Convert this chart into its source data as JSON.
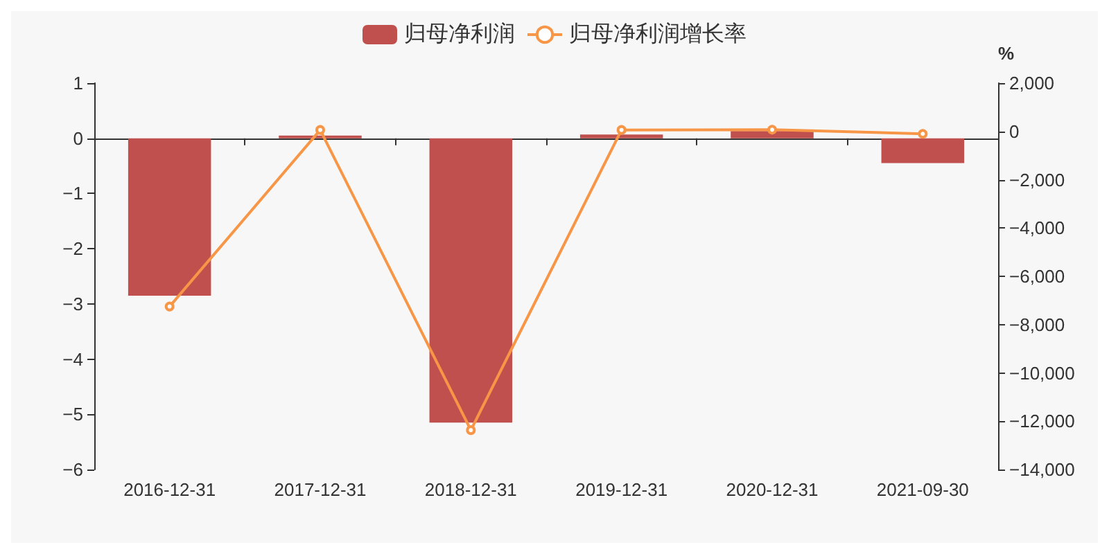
{
  "chart_data": {
    "type": "bar",
    "categories": [
      "2016-12-31",
      "2017-12-31",
      "2018-12-31",
      "2019-12-31",
      "2020-12-31",
      "2021-09-30"
    ],
    "series": [
      {
        "name": "归母净利润",
        "color": "#c0504d",
        "values": [
          -2.85,
          0.05,
          -5.15,
          0.07,
          0.13,
          -0.45
        ]
      },
      {
        "name": "归母净利润增长率",
        "type": "line",
        "axis": "y2",
        "color": "#f79646",
        "values": [
          -7250,
          60,
          -12370,
          60,
          70,
          -100
        ]
      }
    ],
    "y2label": "%",
    "ylim": [
      -6,
      1
    ],
    "yticks": [
      {
        "value": -6,
        "label": "−6"
      },
      {
        "value": -5,
        "label": "−5"
      },
      {
        "value": -4,
        "label": "−4"
      },
      {
        "value": -3,
        "label": "−3"
      },
      {
        "value": -2,
        "label": "−2"
      },
      {
        "value": -1,
        "label": "−1"
      },
      0,
      1
    ],
    "y2lim": [
      -14000,
      2000
    ],
    "y2ticks": [
      {
        "value": -14000,
        "label": "−14,000"
      },
      {
        "value": -12000,
        "label": "−12,000"
      },
      {
        "value": -10000,
        "label": "−10,000"
      },
      {
        "value": -8000,
        "label": "−8,000"
      },
      {
        "value": -6000,
        "label": "−6,000"
      },
      {
        "value": -4000,
        "label": "−4,000"
      },
      {
        "value": -2000,
        "label": "−2,000"
      },
      0,
      {
        "value": 2000,
        "label": "2,000"
      }
    ],
    "legend": "top",
    "marker": "circle"
  }
}
